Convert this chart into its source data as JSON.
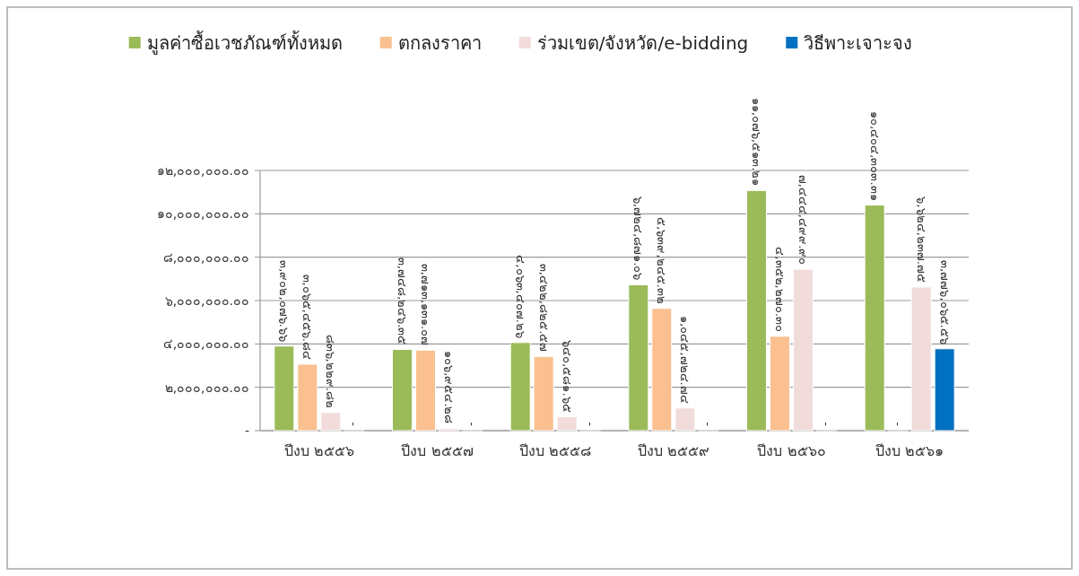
{
  "chart_data": {
    "type": "bar",
    "categories": [
      "ปีงบ ๒๕๕๖",
      "ปีงบ ๒๕๕๗",
      "ปีงบ ๒๕๕๘",
      "ปีงบ ๒๕๕๙",
      "ปีงบ ๒๕๖๐",
      "ปีงบ ๒๕๖๑"
    ],
    "series": [
      {
        "name": "มูลค่าซื้อเวชภัณฑ์ทั้งหมด",
        "color": "#9bbb59",
        "values": [
          3902076.66,
          3748246.35,
          4063407.26,
          6724871.06,
          11076513.21,
          10404303.31
        ],
        "value_labels": [
          "๓,๙๐๒,๐๗๖.๖๖",
          "๓,๗๔๘,๒๔๖.๓๕",
          "๔,๐๖๓,๔๐๗.๒๖",
          "๖,๗๒๔,๘๗๑.๐๖",
          "๑๑,๐๗๖,๕๑๓.๒๑",
          "๑๐,๔๐๔,๓๐๓.๓๑"
        ]
      },
      {
        "name": "ตกลงราคา",
        "color": "#fac090",
        "values": [
          3065456.84,
          3713131.07,
          3422825.57,
          5639245.32,
          4352270.3,
          0
        ],
        "value_labels": [
          "๓,๐๖๕,๔๕๖.๘๔",
          "๓,๗๑๓,๑๓๑.๐๗",
          "๓,๔๒๒,๘๒๕.๕๗",
          "๕,๖๓๙,๒๔๕.๓๒",
          "๔,๓๕๒,๒๗๐.๓๐",
          "-"
        ]
      },
      {
        "name": "ร่วมเขต/จังหวัด/e-bidding",
        "color": "#f2dcdb",
        "values": [
          836229.82,
          106954.28,
          640581.65,
          1045724.74,
          7444499.9,
          6624237.75
        ],
        "value_labels": [
          "๘๓๖,๒๒๙.๘๒",
          "๑๐๖,๙๕๔.๒๘",
          "๖๔๐,๕๘๑.๖๕",
          "๑,๐๔๕,๗๒๔.๗๔",
          "๗,๔๔๔,๔๙๙.๙๐",
          "๖,๖๒๔,๒๓๗.๗๕"
        ]
      },
      {
        "name": "วิธีพาะเจาะจง",
        "color": "#0070c0",
        "values": [
          0,
          0,
          0,
          0,
          0,
          3776065.56
        ],
        "value_labels": [
          "-",
          "-",
          "-",
          "-",
          "-",
          "๓,๗๗๖,๐๖๕.๕๖"
        ]
      }
    ],
    "ylim": [
      0,
      12000000
    ],
    "yticks": [
      {
        "value": 0,
        "label": "-"
      },
      {
        "value": 2000000,
        "label": "๒,๐๐๐,๐๐๐.๐๐"
      },
      {
        "value": 4000000,
        "label": "๔,๐๐๐,๐๐๐.๐๐"
      },
      {
        "value": 6000000,
        "label": "๖,๐๐๐,๐๐๐.๐๐"
      },
      {
        "value": 8000000,
        "label": "๘,๐๐๐,๐๐๐.๐๐"
      },
      {
        "value": 10000000,
        "label": "๑๐,๐๐๐,๐๐๐.๐๐"
      },
      {
        "value": 12000000,
        "label": "๑๒,๐๐๐,๐๐๐.๐๐"
      }
    ],
    "grid": "y",
    "legend": "top"
  }
}
